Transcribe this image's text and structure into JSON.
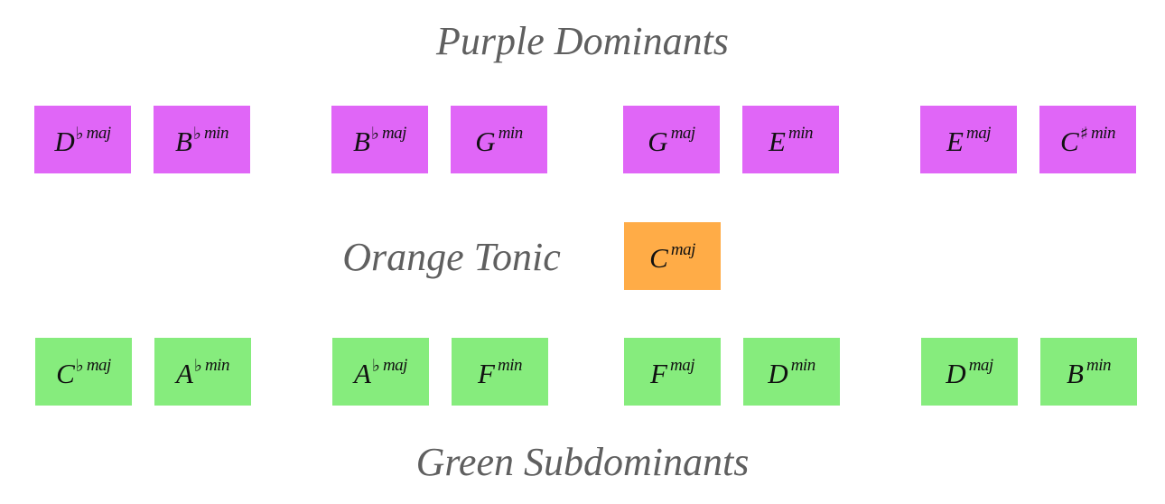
{
  "colors": {
    "dominant": "#e066f7",
    "tonic": "#ffac47",
    "subdominant": "#86ec7d",
    "heading": "#5f5f5f"
  },
  "headings": {
    "dominants": "Purple Dominants",
    "tonic": "Orange Tonic",
    "subdominants": "Green Subdominants"
  },
  "dominants": [
    {
      "root": "D",
      "acc": "♭",
      "qual": "maj"
    },
    {
      "root": "B",
      "acc": "♭",
      "qual": "min"
    },
    {
      "root": "B",
      "acc": "♭",
      "qual": "maj"
    },
    {
      "root": "G",
      "acc": "",
      "qual": "min"
    },
    {
      "root": "G",
      "acc": "",
      "qual": "maj"
    },
    {
      "root": "E",
      "acc": "",
      "qual": "min"
    },
    {
      "root": "E",
      "acc": "",
      "qual": "maj"
    },
    {
      "root": "C",
      "acc": "♯",
      "qual": "min"
    }
  ],
  "tonic": [
    {
      "root": "C",
      "acc": "",
      "qual": "maj"
    }
  ],
  "subdominants": [
    {
      "root": "C",
      "acc": "♭",
      "qual": "maj"
    },
    {
      "root": "A",
      "acc": "♭",
      "qual": "min"
    },
    {
      "root": "A",
      "acc": "♭",
      "qual": "maj"
    },
    {
      "root": "F",
      "acc": "",
      "qual": "min"
    },
    {
      "root": "F",
      "acc": "",
      "qual": "maj"
    },
    {
      "root": "D",
      "acc": "",
      "qual": "min"
    },
    {
      "root": "D",
      "acc": "",
      "qual": "maj"
    },
    {
      "root": "B",
      "acc": "",
      "qual": "min"
    }
  ]
}
